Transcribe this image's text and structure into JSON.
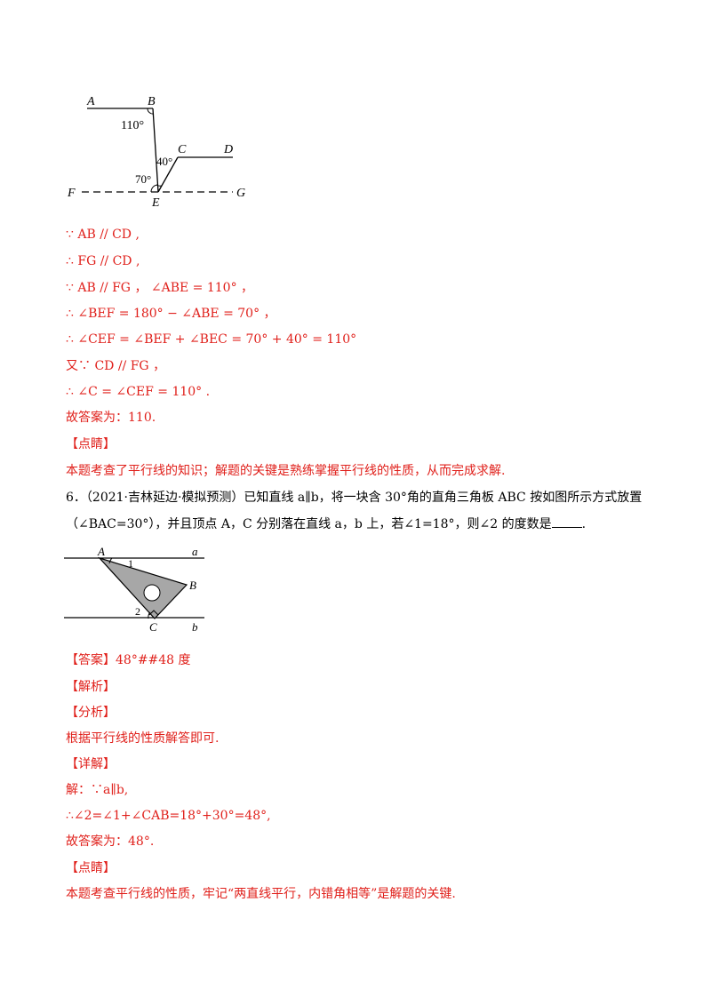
{
  "figure1": {
    "labels": {
      "A": "A",
      "B": "B",
      "C": "C",
      "D": "D",
      "E": "E",
      "F": "F",
      "G": "G"
    },
    "angles": {
      "abe": "110°",
      "bec": "40°",
      "bef": "70°"
    }
  },
  "solution5": {
    "step1": "∵ AB // CD ,",
    "step2": "∴ FG // CD ,",
    "step3": "∵ AB // FG ， ∠ABE = 110° ，",
    "step4": "∴ ∠BEF = 180° − ∠ABE = 70° ，",
    "step5": "∴ ∠CEF = ∠BEF + ∠BEC = 70° + 40° = 110°",
    "step6": "又∵ CD // FG ，",
    "step7": "∴ ∠C = ∠CEF = 110° .",
    "answer": "故答案为：110.",
    "dianjing_heading": "【点睛】",
    "dianjing_text": "本题考查了平行线的知识；解题的关键是熟练掌握平行线的性质，从而完成求解."
  },
  "problem6": {
    "line1": "6．（2021·吉林延边·模拟预测）已知直线 a∥b，将一块含 30°角的直角三角板 ABC 按如图所示方式放置",
    "line2": "（∠BAC=30°），并且顶点 A，C 分别落在直线 a，b 上，若∠1=18°，则∠2 的度数是",
    "line2_end": "."
  },
  "figure2": {
    "labels": {
      "A": "A",
      "B": "B",
      "C": "C",
      "a": "a",
      "b": "b",
      "one": "1",
      "two": "2"
    }
  },
  "solution6": {
    "answer": "【答案】48°##48 度",
    "jiexi": "【解析】",
    "fenxi": "【分析】",
    "fenxi_text": "根据平行线的性质解答即可.",
    "xiangjie": "【详解】",
    "step1": "解：∵a∥b,",
    "step2": "∴∠2=∠1+∠CAB=18°+30°=48°,",
    "answer_line": "故答案为：48°.",
    "dianjing_heading": "【点睛】",
    "dianjing_text": "本题考查平行线的性质，牢记“两直线平行，内错角相等”是解题的关键."
  }
}
